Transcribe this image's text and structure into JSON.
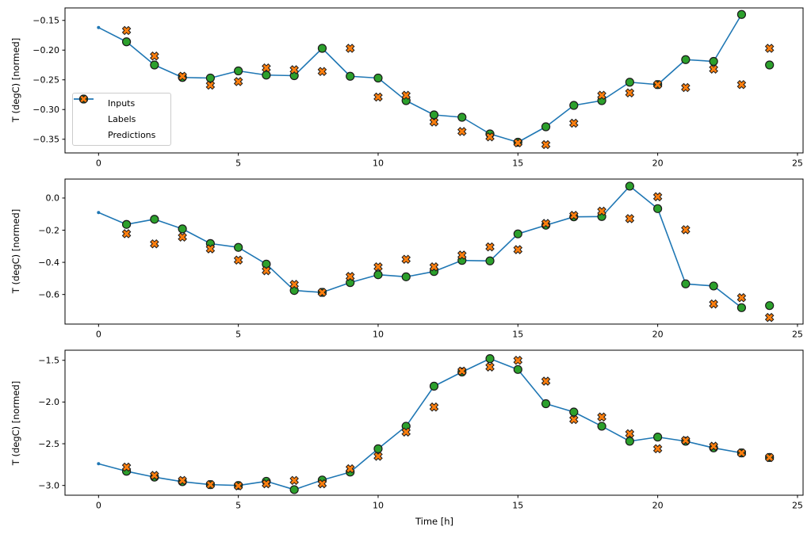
{
  "figure": {
    "background": "#ffffff",
    "xlabel": "Time [h]",
    "ylabel": "T (degC) [normed]",
    "colors": {
      "inputs": "#1f77b4",
      "labels": "#2ca02c",
      "predictions": "#ff7f0e",
      "marker_edge": "#1a1a1a",
      "spine": "#000000"
    },
    "legend": {
      "position": "left-center-subplot-1",
      "entries": [
        {
          "label": "Inputs",
          "marker": "line-dot",
          "color": "#1f77b4"
        },
        {
          "label": "Labels",
          "marker": "circle",
          "color": "#2ca02c"
        },
        {
          "label": "Predictions",
          "marker": "x-cross",
          "color": "#ff7f0e"
        }
      ]
    }
  },
  "chart_data": [
    {
      "type": "line",
      "subplot": 1,
      "ylabel": "T (degC) [normed]",
      "grid": false,
      "legend_visible": true,
      "xlim": [
        -1.2,
        25.2
      ],
      "ylim": [
        -0.373,
        -0.129
      ],
      "xticks": {
        "values": [
          0,
          5,
          10,
          15,
          20,
          25
        ],
        "labels": [
          "0",
          "5",
          "10",
          "15",
          "20",
          "25"
        ]
      },
      "yticks": {
        "values": [
          -0.15,
          -0.2,
          -0.25,
          -0.3,
          -0.35
        ],
        "labels": [
          "−0.15",
          "−0.20",
          "−0.25",
          "−0.30",
          "−0.35"
        ]
      },
      "series": [
        {
          "name": "Inputs",
          "style": "line-dot",
          "x": [
            0,
            1,
            2,
            3,
            4,
            5,
            6,
            7,
            8,
            9,
            10,
            11,
            12,
            13,
            14,
            15,
            16,
            17,
            18,
            19,
            20,
            21,
            22,
            23
          ],
          "y": [
            -0.162,
            -0.186,
            -0.225,
            -0.246,
            -0.247,
            -0.235,
            -0.242,
            -0.243,
            -0.197,
            -0.244,
            -0.247,
            -0.285,
            -0.309,
            -0.313,
            -0.341,
            -0.355,
            -0.329,
            -0.293,
            -0.285,
            -0.254,
            -0.258,
            -0.216,
            -0.219,
            -0.14
          ]
        },
        {
          "name": "Labels",
          "style": "scatter-circle",
          "x": [
            1,
            2,
            3,
            4,
            5,
            6,
            7,
            8,
            9,
            10,
            11,
            12,
            13,
            14,
            15,
            16,
            17,
            18,
            19,
            20,
            21,
            22,
            23,
            24
          ],
          "y": [
            -0.186,
            -0.225,
            -0.246,
            -0.247,
            -0.235,
            -0.242,
            -0.243,
            -0.197,
            -0.244,
            -0.247,
            -0.285,
            -0.309,
            -0.313,
            -0.341,
            -0.355,
            -0.329,
            -0.293,
            -0.285,
            -0.254,
            -0.258,
            -0.216,
            -0.219,
            -0.14,
            -0.225
          ]
        },
        {
          "name": "Predictions",
          "style": "scatter-x",
          "x": [
            1,
            2,
            3,
            4,
            5,
            6,
            7,
            8,
            9,
            10,
            11,
            12,
            13,
            14,
            15,
            16,
            17,
            18,
            19,
            20,
            21,
            22,
            23,
            24
          ],
          "y": [
            -0.167,
            -0.21,
            -0.244,
            -0.259,
            -0.253,
            -0.23,
            -0.233,
            -0.236,
            -0.197,
            -0.279,
            -0.276,
            -0.321,
            -0.337,
            -0.346,
            -0.356,
            -0.359,
            -0.323,
            -0.276,
            -0.272,
            -0.258,
            -0.263,
            -0.232,
            -0.258,
            -0.197
          ]
        }
      ]
    },
    {
      "type": "line",
      "subplot": 2,
      "ylabel": "T (degC) [normed]",
      "grid": false,
      "legend_visible": false,
      "xlim": [
        -1.2,
        25.2
      ],
      "ylim": [
        -0.784,
        0.118
      ],
      "xticks": {
        "values": [
          0,
          5,
          10,
          15,
          20,
          25
        ],
        "labels": [
          "0",
          "5",
          "10",
          "15",
          "20",
          "25"
        ]
      },
      "yticks": {
        "values": [
          0.0,
          -0.2,
          -0.4,
          -0.6
        ],
        "labels": [
          "0.0",
          "−0.2",
          "−0.4",
          "−0.6"
        ]
      },
      "series": [
        {
          "name": "Inputs",
          "style": "line-dot",
          "x": [
            0,
            1,
            2,
            3,
            4,
            5,
            6,
            7,
            8,
            9,
            10,
            11,
            12,
            13,
            14,
            15,
            16,
            17,
            18,
            19,
            20,
            21,
            22,
            23
          ],
          "y": [
            -0.09,
            -0.164,
            -0.132,
            -0.192,
            -0.283,
            -0.307,
            -0.411,
            -0.575,
            -0.587,
            -0.526,
            -0.477,
            -0.49,
            -0.457,
            -0.388,
            -0.391,
            -0.223,
            -0.169,
            -0.117,
            -0.115,
            0.074,
            -0.066,
            -0.534,
            -0.547,
            -0.682
          ]
        },
        {
          "name": "Labels",
          "style": "scatter-circle",
          "x": [
            1,
            2,
            3,
            4,
            5,
            6,
            7,
            8,
            9,
            10,
            11,
            12,
            13,
            14,
            15,
            16,
            17,
            18,
            19,
            20,
            21,
            22,
            23,
            24
          ],
          "y": [
            -0.164,
            -0.132,
            -0.192,
            -0.283,
            -0.307,
            -0.411,
            -0.575,
            -0.587,
            -0.526,
            -0.477,
            -0.49,
            -0.457,
            -0.388,
            -0.391,
            -0.223,
            -0.169,
            -0.117,
            -0.115,
            0.074,
            -0.066,
            -0.534,
            -0.547,
            -0.682,
            -0.669
          ]
        },
        {
          "name": "Predictions",
          "style": "scatter-x",
          "x": [
            1,
            2,
            3,
            4,
            5,
            6,
            7,
            8,
            9,
            10,
            11,
            12,
            13,
            14,
            15,
            16,
            17,
            18,
            19,
            20,
            21,
            22,
            23,
            24
          ],
          "y": [
            -0.222,
            -0.285,
            -0.243,
            -0.316,
            -0.386,
            -0.452,
            -0.537,
            -0.587,
            -0.488,
            -0.428,
            -0.381,
            -0.428,
            -0.355,
            -0.304,
            -0.321,
            -0.158,
            -0.108,
            -0.082,
            -0.128,
            0.008,
            -0.197,
            -0.659,
            -0.62,
            -0.743
          ]
        }
      ]
    },
    {
      "type": "line",
      "subplot": 3,
      "ylabel": "T (degC) [normed]",
      "xlabel": "Time [h]",
      "grid": false,
      "legend_visible": false,
      "xlim": [
        -1.2,
        25.2
      ],
      "ylim": [
        -3.117,
        -1.379
      ],
      "xticks": {
        "values": [
          0,
          5,
          10,
          15,
          20,
          25
        ],
        "labels": [
          "0",
          "5",
          "10",
          "15",
          "20",
          "25"
        ]
      },
      "yticks": {
        "values": [
          -1.5,
          -2.0,
          -2.5,
          -3.0
        ],
        "labels": [
          "−1.5",
          "−2.0",
          "−2.5",
          "−3.0"
        ]
      },
      "series": [
        {
          "name": "Inputs",
          "style": "line-dot",
          "x": [
            0,
            1,
            2,
            3,
            4,
            5,
            6,
            7,
            8,
            9,
            10,
            11,
            12,
            13,
            14,
            15,
            16,
            17,
            18,
            19,
            20,
            21,
            22,
            23
          ],
          "y": [
            -2.74,
            -2.83,
            -2.9,
            -2.955,
            -2.99,
            -3.0,
            -2.95,
            -3.05,
            -2.935,
            -2.84,
            -2.56,
            -2.29,
            -1.81,
            -1.64,
            -1.48,
            -1.61,
            -2.02,
            -2.12,
            -2.29,
            -2.47,
            -2.42,
            -2.47,
            -2.55,
            -2.61
          ]
        },
        {
          "name": "Labels",
          "style": "scatter-circle",
          "x": [
            1,
            2,
            3,
            4,
            5,
            6,
            7,
            8,
            9,
            10,
            11,
            12,
            13,
            14,
            15,
            16,
            17,
            18,
            19,
            20,
            21,
            22,
            23,
            24
          ],
          "y": [
            -2.83,
            -2.9,
            -2.955,
            -2.99,
            -3.0,
            -2.95,
            -3.05,
            -2.935,
            -2.84,
            -2.56,
            -2.29,
            -1.81,
            -1.64,
            -1.48,
            -1.61,
            -2.02,
            -2.12,
            -2.29,
            -2.47,
            -2.42,
            -2.47,
            -2.55,
            -2.61,
            -2.665
          ]
        },
        {
          "name": "Predictions",
          "style": "scatter-x",
          "x": [
            1,
            2,
            3,
            4,
            5,
            6,
            7,
            8,
            9,
            10,
            11,
            12,
            13,
            14,
            15,
            16,
            17,
            18,
            19,
            20,
            21,
            22,
            23,
            24
          ],
          "y": [
            -2.78,
            -2.88,
            -2.94,
            -2.99,
            -3.005,
            -2.98,
            -2.94,
            -2.98,
            -2.8,
            -2.65,
            -2.36,
            -2.06,
            -1.63,
            -1.58,
            -1.5,
            -1.75,
            -2.21,
            -2.18,
            -2.38,
            -2.56,
            -2.46,
            -2.53,
            -2.61,
            -2.665
          ]
        }
      ]
    }
  ]
}
